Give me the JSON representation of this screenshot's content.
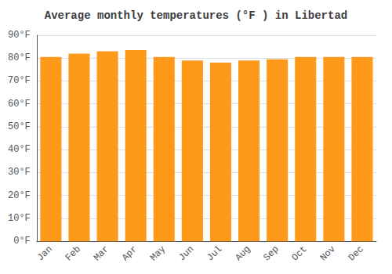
{
  "chart_data": {
    "type": "bar",
    "title": "Average monthly temperatures (°F ) in Libertad",
    "categories": [
      "Jan",
      "Feb",
      "Mar",
      "Apr",
      "May",
      "Jun",
      "Jul",
      "Aug",
      "Sep",
      "Oct",
      "Nov",
      "Dec"
    ],
    "values": [
      80.5,
      82.0,
      83.0,
      83.5,
      80.5,
      79.0,
      78.0,
      79.0,
      79.5,
      80.5,
      80.5,
      80.5
    ],
    "color": "#ff991a",
    "ylim": [
      0,
      90
    ],
    "yticks": [
      {
        "value": 0,
        "label": "0°F"
      },
      {
        "value": 10,
        "label": "10°F"
      },
      {
        "value": 20,
        "label": "20°F"
      },
      {
        "value": 30,
        "label": "30°F"
      },
      {
        "value": 40,
        "label": "40°F"
      },
      {
        "value": 50,
        "label": "50°F"
      },
      {
        "value": 60,
        "label": "60°F"
      },
      {
        "value": 70,
        "label": "70°F"
      },
      {
        "value": 80,
        "label": "80°F"
      },
      {
        "value": 90,
        "label": "90°F"
      }
    ],
    "grid": true
  }
}
